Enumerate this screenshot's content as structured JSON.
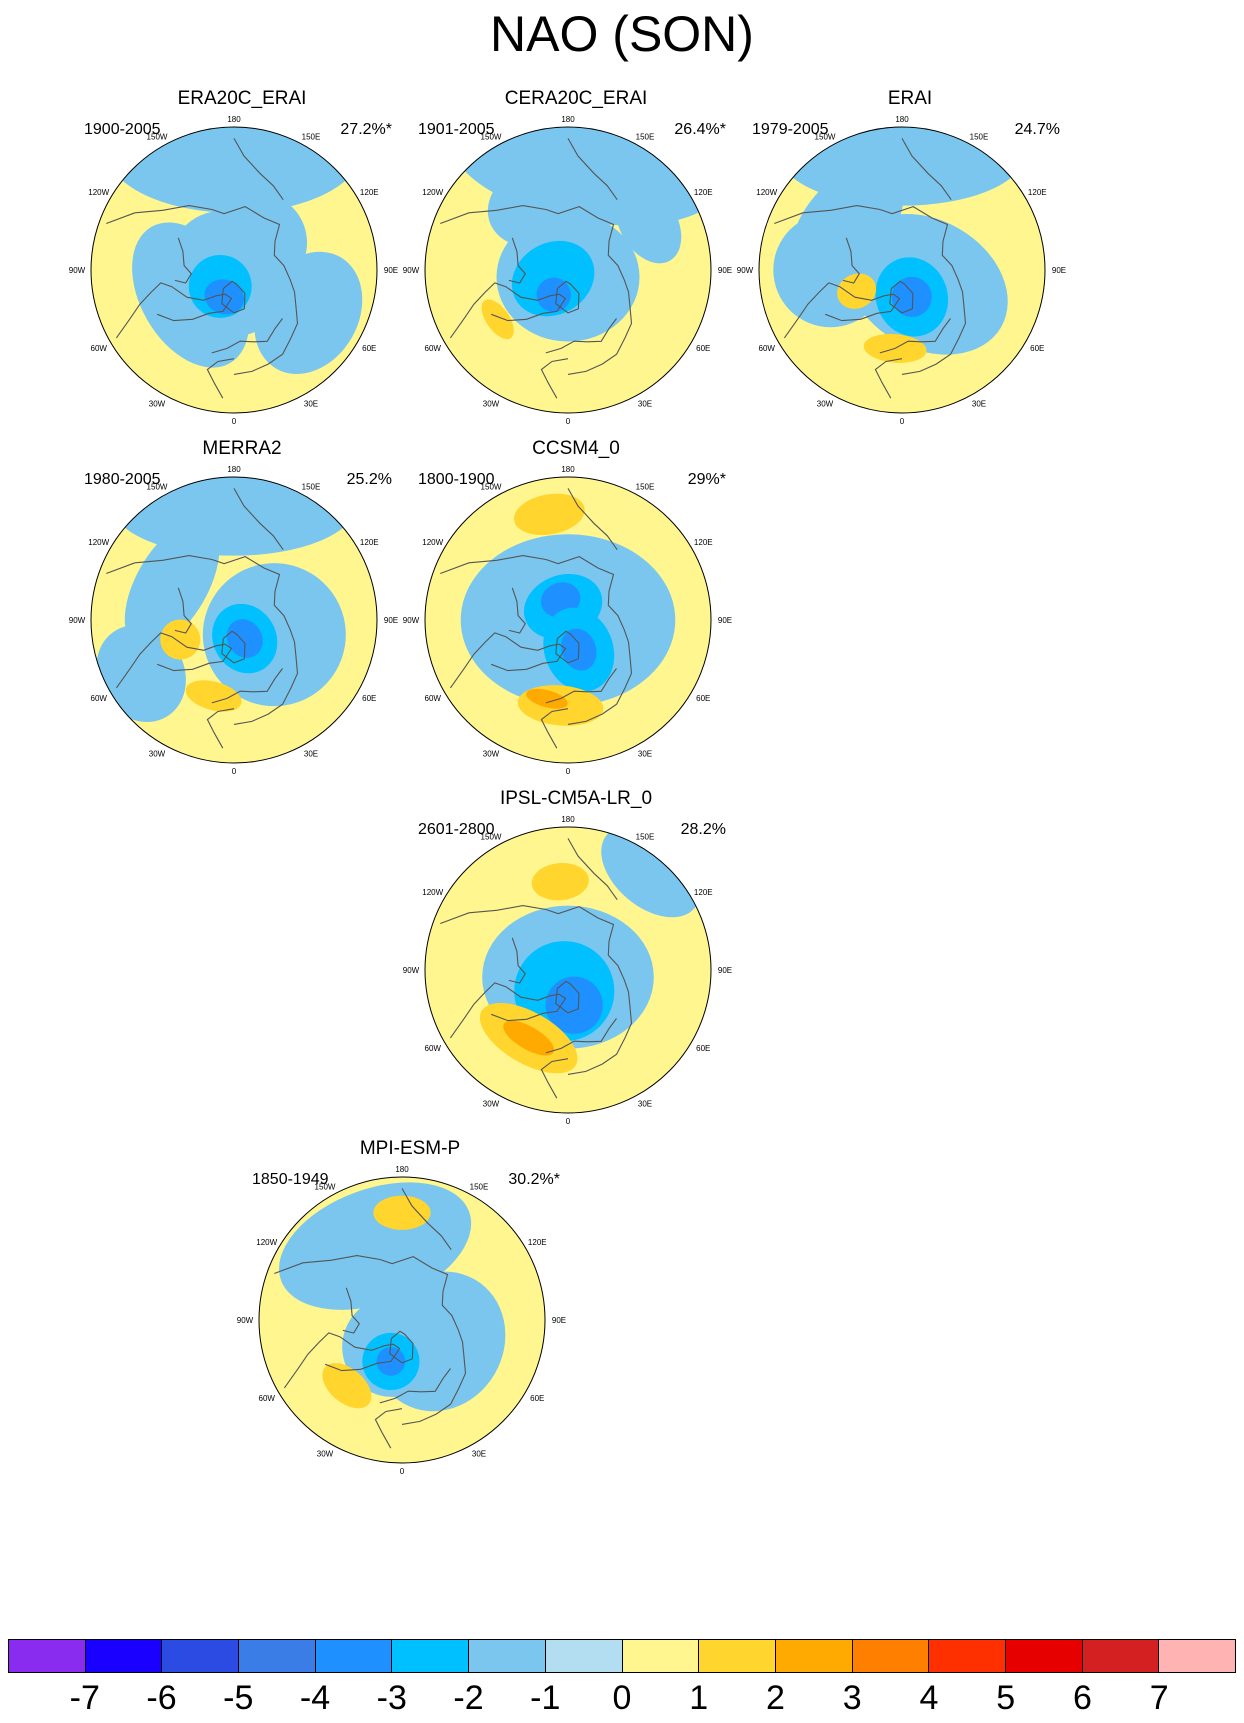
{
  "title": "NAO (SON)",
  "colors": {
    "land_outline": "#555555",
    "globe_border": "#000000",
    "neg_levels": [
      "#B3DEF2",
      "#7AC6EE",
      "#00C0FF",
      "#1E90FF",
      "#3A7DE6",
      "#2C4BE3"
    ],
    "pos_levels": [
      "#FFF68F",
      "#FFD52E",
      "#FFAA00",
      "#FF7F00",
      "#FF3000"
    ]
  },
  "colorbar": {
    "colors": [
      "#8A2BF0",
      "#1A00FF",
      "#2C4BE3",
      "#3A7DE6",
      "#1E90FF",
      "#00C0FF",
      "#7AC6EE",
      "#B3DEF2",
      "#FFF68F",
      "#FFD52E",
      "#FFAA00",
      "#FF7F00",
      "#FF3000",
      "#E60000",
      "#D42020",
      "#FFB3B3"
    ],
    "labels": [
      "-7",
      "-6",
      "-5",
      "-4",
      "-3",
      "-2",
      "-1",
      "0",
      "1",
      "2",
      "3",
      "4",
      "5",
      "6",
      "7"
    ]
  },
  "longitude_labels": [
    "180",
    "150E",
    "120E",
    "90E",
    "60E",
    "30E",
    "0",
    "30W",
    "60W",
    "90W",
    "120W",
    "150W"
  ],
  "panels": [
    {
      "name": "ERA20C_ERAI",
      "period": "1900-2005",
      "variance": "27.2%*",
      "base": "yellow",
      "features": [
        {
          "type": "blue",
          "lon": 180,
          "dist": 0.85,
          "rx": 0.9,
          "ry": 0.45,
          "level": 1
        },
        {
          "type": "blue",
          "lon": 60,
          "dist": 0.6,
          "rx": 0.45,
          "ry": 0.35,
          "level": 1
        },
        {
          "type": "blue",
          "lon": 300,
          "dist": 0.35,
          "rx": 0.55,
          "ry": 0.35,
          "level": 1
        },
        {
          "type": "blue",
          "lon": 140,
          "dist": 0.25,
          "rx": 0.35,
          "ry": 0.35,
          "level": 1
        },
        {
          "type": "blue",
          "lon": 300,
          "dist": 0.05,
          "rx": 0.45,
          "ry": 0.4,
          "level": 1
        },
        {
          "type": "blue",
          "lon": 320,
          "dist": 0.15,
          "rx": 0.22,
          "ry": 0.22,
          "level": 2
        },
        {
          "type": "blue",
          "lon": 340,
          "dist": 0.2,
          "rx": 0.14,
          "ry": 0.12,
          "level": 3
        }
      ]
    },
    {
      "name": "CERA20C_ERAI",
      "period": "1901-2005",
      "variance": "26.4%*",
      "base": "yellow",
      "features": [
        {
          "type": "blue",
          "lon": 170,
          "dist": 0.75,
          "rx": 0.95,
          "ry": 0.4,
          "level": 1
        },
        {
          "type": "blue",
          "lon": 120,
          "dist": 0.65,
          "rx": 0.3,
          "ry": 0.2,
          "level": 1
        },
        {
          "type": "blue",
          "lon": 200,
          "dist": 0.5,
          "rx": 0.4,
          "ry": 0.3,
          "level": 1
        },
        {
          "type": "blue",
          "lon": 0,
          "dist": 0.05,
          "rx": 0.5,
          "ry": 0.45,
          "level": 1
        },
        {
          "type": "blue",
          "lon": 300,
          "dist": 0.12,
          "rx": 0.25,
          "ry": 0.3,
          "level": 2
        },
        {
          "type": "blue",
          "lon": 330,
          "dist": 0.2,
          "rx": 0.12,
          "ry": 0.12,
          "level": 3
        },
        {
          "type": "yellow",
          "lon": 305,
          "dist": 0.6,
          "rx": 0.16,
          "ry": 0.08,
          "level": 1
        }
      ]
    },
    {
      "name": "ERAI",
      "period": "1979-2005",
      "variance": "24.7%",
      "base": "yellow",
      "features": [
        {
          "type": "blue",
          "lon": 180,
          "dist": 0.8,
          "rx": 0.85,
          "ry": 0.35,
          "level": 1
        },
        {
          "type": "blue",
          "lon": 230,
          "dist": 0.5,
          "rx": 0.5,
          "ry": 0.3,
          "level": 1
        },
        {
          "type": "blue",
          "lon": 60,
          "dist": 0.2,
          "rx": 0.45,
          "ry": 0.6,
          "level": 1
        },
        {
          "type": "blue",
          "lon": 270,
          "dist": 0.5,
          "rx": 0.4,
          "ry": 0.4,
          "level": 1
        },
        {
          "type": "blue",
          "lon": 20,
          "dist": 0.2,
          "rx": 0.25,
          "ry": 0.28,
          "level": 2
        },
        {
          "type": "blue",
          "lon": 20,
          "dist": 0.2,
          "rx": 0.14,
          "ry": 0.14,
          "level": 3
        },
        {
          "type": "yellow",
          "lon": 295,
          "dist": 0.35,
          "rx": 0.12,
          "ry": 0.14,
          "level": 1
        },
        {
          "type": "yellow",
          "lon": 355,
          "dist": 0.55,
          "rx": 0.22,
          "ry": 0.1,
          "level": 1
        }
      ]
    },
    {
      "name": "MERRA2",
      "period": "1980-2005",
      "variance": "25.2%",
      "base": "yellow",
      "features": [
        {
          "type": "blue",
          "lon": 180,
          "dist": 0.8,
          "rx": 0.85,
          "ry": 0.35,
          "level": 1
        },
        {
          "type": "blue",
          "lon": 240,
          "dist": 0.5,
          "rx": 0.5,
          "ry": 0.25,
          "level": 1
        },
        {
          "type": "blue",
          "lon": 70,
          "dist": 0.3,
          "rx": 0.5,
          "ry": 0.5,
          "level": 1
        },
        {
          "type": "blue",
          "lon": 300,
          "dist": 0.75,
          "rx": 0.35,
          "ry": 0.3,
          "level": 1
        },
        {
          "type": "blue",
          "lon": 30,
          "dist": 0.15,
          "rx": 0.22,
          "ry": 0.25,
          "level": 2
        },
        {
          "type": "blue",
          "lon": 30,
          "dist": 0.15,
          "rx": 0.12,
          "ry": 0.14,
          "level": 3
        },
        {
          "type": "yellow",
          "lon": 290,
          "dist": 0.4,
          "rx": 0.14,
          "ry": 0.14,
          "level": 1
        },
        {
          "type": "yellow",
          "lon": 345,
          "dist": 0.55,
          "rx": 0.2,
          "ry": 0.1,
          "level": 1
        }
      ]
    },
    {
      "name": "CCSM4_0",
      "period": "1800-1900",
      "variance": "29%*",
      "base": "yellow",
      "features": [
        {
          "type": "blue",
          "lon": 0,
          "dist": 0.0,
          "rx": 0.75,
          "ry": 0.6,
          "level": 1
        },
        {
          "type": "blue",
          "lon": 200,
          "dist": 0.1,
          "rx": 0.28,
          "ry": 0.22,
          "level": 2
        },
        {
          "type": "blue",
          "lon": 200,
          "dist": 0.15,
          "rx": 0.14,
          "ry": 0.12,
          "level": 3
        },
        {
          "type": "blue",
          "lon": 20,
          "dist": 0.22,
          "rx": 0.24,
          "ry": 0.3,
          "level": 2
        },
        {
          "type": "blue",
          "lon": 20,
          "dist": 0.22,
          "rx": 0.12,
          "ry": 0.15,
          "level": 3
        },
        {
          "type": "yellow",
          "lon": 190,
          "dist": 0.75,
          "rx": 0.25,
          "ry": 0.14,
          "level": 1
        },
        {
          "type": "yellow",
          "lon": 355,
          "dist": 0.6,
          "rx": 0.3,
          "ry": 0.14,
          "level": 1
        },
        {
          "type": "yellow",
          "lon": 345,
          "dist": 0.57,
          "rx": 0.15,
          "ry": 0.06,
          "level": 2
        }
      ]
    },
    {
      "name": "IPSL-CM5A-LR_0",
      "period": "2601-2800",
      "variance": "28.2%",
      "base": "yellow",
      "features": [
        {
          "type": "blue",
          "lon": 140,
          "dist": 0.9,
          "rx": 0.4,
          "ry": 0.25,
          "level": 1
        },
        {
          "type": "blue",
          "lon": 0,
          "dist": 0.05,
          "rx": 0.6,
          "ry": 0.5,
          "level": 1
        },
        {
          "type": "blue",
          "lon": 350,
          "dist": 0.15,
          "rx": 0.35,
          "ry": 0.35,
          "level": 2
        },
        {
          "type": "blue",
          "lon": 10,
          "dist": 0.25,
          "rx": 0.2,
          "ry": 0.2,
          "level": 3
        },
        {
          "type": "yellow",
          "lon": 185,
          "dist": 0.62,
          "rx": 0.2,
          "ry": 0.13,
          "level": 1
        },
        {
          "type": "yellow",
          "lon": 330,
          "dist": 0.55,
          "rx": 0.38,
          "ry": 0.18,
          "level": 1
        },
        {
          "type": "yellow",
          "lon": 330,
          "dist": 0.55,
          "rx": 0.2,
          "ry": 0.08,
          "level": 2
        }
      ]
    },
    {
      "name": "MPI-ESM-P",
      "period": "1850-1949",
      "variance": "30.2%*",
      "base": "yellow",
      "features": [
        {
          "type": "blue",
          "lon": 200,
          "dist": 0.55,
          "rx": 0.7,
          "ry": 0.4,
          "level": 1
        },
        {
          "type": "blue",
          "lon": 60,
          "dist": 0.3,
          "rx": 0.5,
          "ry": 0.45,
          "level": 1
        },
        {
          "type": "blue",
          "lon": 340,
          "dist": 0.2,
          "rx": 0.35,
          "ry": 0.35,
          "level": 1
        },
        {
          "type": "blue",
          "lon": 345,
          "dist": 0.3,
          "rx": 0.2,
          "ry": 0.2,
          "level": 2
        },
        {
          "type": "blue",
          "lon": 345,
          "dist": 0.3,
          "rx": 0.1,
          "ry": 0.1,
          "level": 3
        },
        {
          "type": "yellow",
          "lon": 180,
          "dist": 0.75,
          "rx": 0.2,
          "ry": 0.12,
          "level": 1
        },
        {
          "type": "yellow",
          "lon": 320,
          "dist": 0.6,
          "rx": 0.2,
          "ry": 0.12,
          "level": 1
        }
      ]
    }
  ]
}
